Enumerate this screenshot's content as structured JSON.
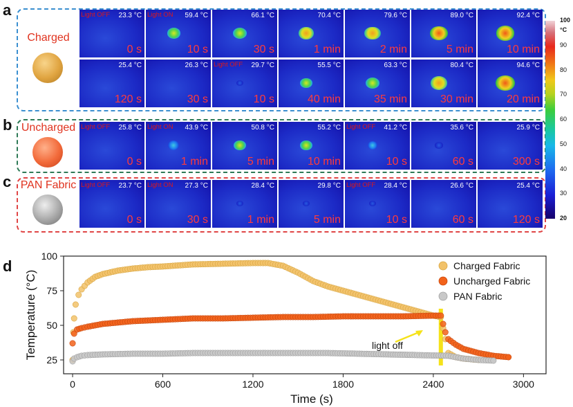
{
  "panels": {
    "a": {
      "letter": "a",
      "sample": "Charged",
      "row1": [
        {
          "label": "Light OFF",
          "temp": "23.3 °C",
          "time": "0 s",
          "heat": 0
        },
        {
          "label": "Light ON",
          "temp": "59.4 °C",
          "time": "10 s",
          "heat": 0.5
        },
        {
          "label": "",
          "temp": "66.1 °C",
          "time": "30 s",
          "heat": 0.6
        },
        {
          "label": "",
          "temp": "70.4 °C",
          "time": "1 min",
          "heat": 0.65
        },
        {
          "label": "",
          "temp": "79.6 °C",
          "time": "2 min",
          "heat": 0.75
        },
        {
          "label": "",
          "temp": "89.0 °C",
          "time": "5 min",
          "heat": 0.88
        },
        {
          "label": "",
          "temp": "92.4 °C",
          "time": "10 min",
          "heat": 0.92
        }
      ],
      "row2": [
        {
          "label": "",
          "temp": "25.4 °C",
          "time": "120 s",
          "heat": 0
        },
        {
          "label": "",
          "temp": "26.3 °C",
          "time": "30 s",
          "heat": 0
        },
        {
          "label": "Light OFF",
          "temp": "29.7 °C",
          "time": "10 s",
          "heat": 0.05
        },
        {
          "label": "",
          "temp": "55.5 °C",
          "time": "40 min",
          "heat": 0.45
        },
        {
          "label": "",
          "temp": "63.3 °C",
          "time": "35 min",
          "heat": 0.55
        },
        {
          "label": "",
          "temp": "80.4 °C",
          "time": "30 min",
          "heat": 0.78
        },
        {
          "label": "",
          "temp": "94.6 °C",
          "time": "20 min",
          "heat": 0.95
        }
      ]
    },
    "b": {
      "letter": "b",
      "sample": "Uncharged",
      "row": [
        {
          "label": "Light OFF",
          "temp": "25.8 °C",
          "time": "0 s",
          "heat": 0
        },
        {
          "label": "Light ON",
          "temp": "43.9 °C",
          "time": "1 min",
          "heat": 0.35
        },
        {
          "label": "",
          "temp": "50.8 °C",
          "time": "5 min",
          "heat": 0.42
        },
        {
          "label": "",
          "temp": "55.2 °C",
          "time": "10 min",
          "heat": 0.48
        },
        {
          "label": "Light OFF",
          "temp": "41.2 °C",
          "time": "10 s",
          "heat": 0.22
        },
        {
          "label": "",
          "temp": "35.6 °C",
          "time": "60 s",
          "heat": 0.08
        },
        {
          "label": "",
          "temp": "25.9 °C",
          "time": "300 s",
          "heat": 0
        }
      ]
    },
    "c": {
      "letter": "c",
      "sample": "PAN Fabric",
      "row": [
        {
          "label": "Light OFF",
          "temp": "23.7 °C",
          "time": "0 s",
          "heat": 0
        },
        {
          "label": "Light ON",
          "temp": "27.3 °C",
          "time": "30 s",
          "heat": 0
        },
        {
          "label": "",
          "temp": "28.4 °C",
          "time": "1 min",
          "heat": 0.02
        },
        {
          "label": "",
          "temp": "29.8 °C",
          "time": "5 min",
          "heat": 0.04
        },
        {
          "label": "Light OFF",
          "temp": "28.4 °C",
          "time": "10 s",
          "heat": 0.02
        },
        {
          "label": "",
          "temp": "26.6 °C",
          "time": "60 s",
          "heat": 0
        },
        {
          "label": "",
          "temp": "25.4 °C",
          "time": "120 s",
          "heat": 0
        }
      ]
    },
    "d": {
      "letter": "d"
    }
  },
  "colorbar": {
    "unit": "°C",
    "ticks": [
      "100",
      "90",
      "80",
      "70",
      "60",
      "50",
      "40",
      "30",
      "20"
    ]
  },
  "colors": {
    "charged": "#f2c26a",
    "uncharged": "#f2621a",
    "pan": "#c8c8c8",
    "light_off": "#f5e21a",
    "box_a": "#3a8fd0",
    "box_b": "#2e7a56",
    "box_c": "#e04545"
  },
  "chart_data": {
    "type": "scatter",
    "xlabel": "Time (s)",
    "ylabel": "Temperature (°C)",
    "xlim": [
      -60,
      3150
    ],
    "ylim": [
      15,
      100
    ],
    "xticks": [
      0,
      600,
      1200,
      1800,
      2400,
      3000
    ],
    "yticks": [
      25,
      50,
      75,
      100
    ],
    "annotation": "light off",
    "light_off_x": 2450,
    "series": [
      {
        "name": "Charged Fabric",
        "x": [
          0,
          5,
          10,
          20,
          40,
          60,
          100,
          150,
          200,
          300,
          400,
          500,
          600,
          800,
          1000,
          1200,
          1300,
          1400,
          1500,
          1600,
          1700,
          1800,
          1900,
          2000,
          2100,
          2200,
          2300,
          2400,
          2450,
          2480,
          2500,
          2550,
          2600,
          2700
        ],
        "y": [
          25,
          45,
          55,
          65,
          72,
          76,
          81,
          85,
          87,
          89.5,
          91,
          92,
          92.5,
          94,
          94.5,
          95,
          95,
          93,
          88,
          82,
          78,
          75,
          72,
          69,
          66,
          63,
          60,
          57,
          56,
          40,
          30,
          27,
          26,
          25
        ]
      },
      {
        "name": "Uncharged Fabric",
        "x": [
          0,
          10,
          30,
          60,
          100,
          150,
          200,
          300,
          400,
          600,
          800,
          1000,
          1200,
          1400,
          1600,
          1800,
          2000,
          2200,
          2400,
          2450,
          2480,
          2500,
          2550,
          2600,
          2700,
          2800,
          2900
        ],
        "y": [
          37,
          44,
          47,
          48,
          49,
          50,
          51,
          52,
          53,
          54,
          55,
          55,
          55.5,
          56,
          56,
          56.5,
          56.5,
          56.5,
          57,
          57,
          45,
          40,
          36,
          33,
          30,
          28,
          27
        ]
      },
      {
        "name": "PAN Fabric",
        "x": [
          0,
          10,
          30,
          60,
          100,
          200,
          400,
          600,
          800,
          1000,
          1200,
          1400,
          1600,
          1700,
          2500,
          2600,
          2700,
          2800
        ],
        "y": [
          24,
          26,
          27,
          28,
          28.5,
          29,
          29.5,
          29.5,
          30,
          30,
          30,
          30,
          30,
          30,
          28,
          26,
          25,
          24.5
        ]
      }
    ]
  }
}
